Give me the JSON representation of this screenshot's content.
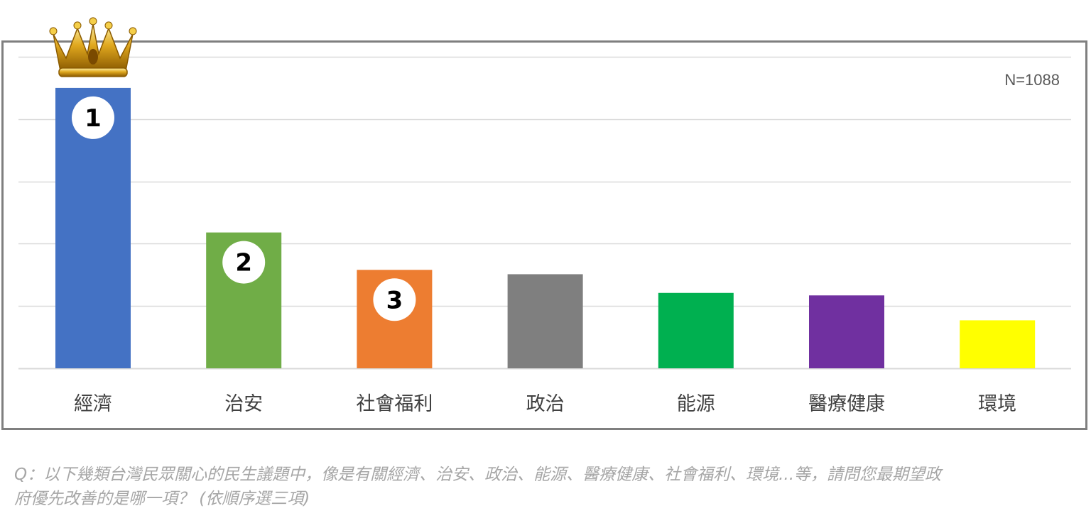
{
  "chart_data": {
    "type": "bar",
    "sample_size_label": "N=1088",
    "categories": [
      "經濟",
      "治安",
      "社會福利",
      "政治",
      "能源",
      "醫療健康",
      "環境"
    ],
    "values": [
      45,
      21.8,
      15.8,
      15.1,
      12.1,
      11.7,
      7.7
    ],
    "colors": [
      "#4472c4",
      "#70ad47",
      "#ed7d31",
      "#7f7f7f",
      "#00b050",
      "#7030a0",
      "#ffff00"
    ],
    "ranks": [
      "1",
      "2",
      "3"
    ],
    "top_marker": "crown-icon",
    "ylim": [
      0,
      50
    ],
    "gridlines": true,
    "y_tick_labels_shown": false
  },
  "question": "Q：以下幾類台灣民眾關心的民生議題中，像是有關經濟、治安、政治、能源、醫療健康、社會福利、環境...等，請問您最期望政府優先改善的是哪一項？ (依順序選三項)"
}
